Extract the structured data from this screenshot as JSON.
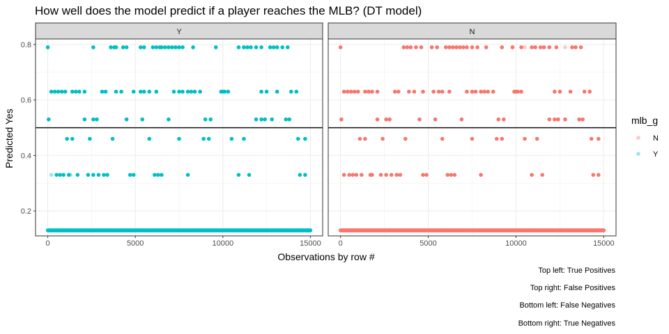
{
  "chart_data": {
    "type": "scatter",
    "title": "How well does the model predict if a player reaches the MLB? (DT model)",
    "xlabel": "Observations by row #",
    "ylabel": "Predicted Yes",
    "xlim": [
      -700,
      15700
    ],
    "ylim": [
      0.11,
      0.82
    ],
    "x_ticks": [
      0,
      5000,
      10000,
      15000
    ],
    "x_tick_labels": [
      "0",
      "5000",
      "10000",
      "15000"
    ],
    "y_ticks": [
      0.2,
      0.4,
      0.6,
      0.8
    ],
    "y_tick_labels": [
      "0.2",
      "0.4",
      "0.6",
      "0.8"
    ],
    "threshold_line": 0.5,
    "grid": true,
    "facet_var": "actual outcome",
    "panels": [
      {
        "strip_label": "Y",
        "series": "Y",
        "levels": [
          {
            "y": 0.79,
            "x": [
              0,
              2600,
              3600,
              3800,
              3900,
              4300,
              4500,
              5300,
              5500,
              6000,
              6200,
              6400,
              6500,
              6700,
              6900,
              7100,
              7300,
              7500,
              7700,
              8300,
              9600,
              10900,
              11200,
              11400,
              11600,
              11900,
              12200,
              12700,
              12900,
              13100,
              13400,
              13700
            ]
          },
          {
            "y": 0.63,
            "x": [
              200,
              400,
              600,
              800,
              1000,
              1400,
              1600,
              1800,
              2100,
              3100,
              3300,
              3900,
              4200,
              4900,
              5300,
              5500,
              5800,
              6200,
              7200,
              7500,
              7700,
              8000,
              8200,
              8400,
              8700,
              9900,
              10000,
              10100,
              10300,
              12200,
              12500,
              13100,
              13900,
              14200
            ]
          },
          {
            "y": 0.53,
            "x": [
              50,
              2100,
              2600,
              2800,
              4500,
              5400,
              6900,
              9000,
              9300,
              11900,
              12200,
              12400,
              12800,
              13600,
              13800
            ]
          },
          {
            "y": 0.46,
            "x": [
              1100,
              1400,
              2400,
              3700,
              5800,
              7500,
              8900,
              9200,
              10500,
              11200,
              14300,
              14700
            ]
          },
          {
            "y": 0.33,
            "x": [
              500,
              700,
              900,
              1200,
              1700,
              2300,
              2600,
              2900,
              3200,
              3400,
              4700,
              4900,
              6100,
              6300,
              6500,
              8000,
              10900,
              11500,
              14400,
              14700
            ]
          },
          {
            "y": 0.13,
            "x_range": [
              0,
              15000
            ]
          }
        ],
        "faint_points": [
          {
            "x": 200,
            "y": 0.33
          },
          {
            "x": 1300,
            "y": 0.33
          },
          {
            "x": 14900,
            "y": 0.13
          }
        ]
      },
      {
        "strip_label": "N",
        "series": "N",
        "levels": [
          {
            "y": 0.79,
            "x": [
              0,
              3600,
              3800,
              4000,
              4300,
              4600,
              5200,
              5500,
              6000,
              6200,
              6400,
              6600,
              6800,
              7000,
              7200,
              7500,
              7800,
              8300,
              9200,
              9800,
              10300,
              10900,
              11100,
              11400,
              11600,
              11900,
              12300,
              13200,
              13400,
              13700
            ]
          },
          {
            "y": 0.63,
            "x": [
              200,
              400,
              600,
              800,
              1000,
              1400,
              1600,
              1800,
              2100,
              3100,
              3300,
              3900,
              4200,
              4700,
              5300,
              5600,
              5800,
              6200,
              7200,
              7500,
              7700,
              8000,
              8200,
              8400,
              8700,
              9900,
              10000,
              10100,
              10300,
              12200,
              12500,
              13100,
              13900,
              14200
            ]
          },
          {
            "y": 0.53,
            "x": [
              50,
              2100,
              2600,
              2800,
              4500,
              5400,
              6900,
              9000,
              9300,
              11900,
              12200,
              12400,
              12800,
              13600,
              13800
            ]
          },
          {
            "y": 0.46,
            "x": [
              1100,
              1400,
              2400,
              3700,
              5800,
              7500,
              8900,
              9200,
              10500,
              11200,
              14300,
              14700
            ]
          },
          {
            "y": 0.33,
            "x": [
              200,
              500,
              700,
              900,
              1200,
              1700,
              1800,
              2300,
              2600,
              2900,
              3200,
              3400,
              4700,
              4900,
              6100,
              6300,
              6500,
              8000,
              10900,
              11500,
              14400,
              14700
            ]
          },
          {
            "y": 0.13,
            "x_range": [
              0,
              15000
            ]
          }
        ],
        "faint_points": [
          {
            "x": 9800,
            "y": 0.79
          },
          {
            "x": 10500,
            "y": 0.79
          },
          {
            "x": 12800,
            "y": 0.79
          }
        ]
      }
    ],
    "legend": {
      "title": "mlb_g",
      "placement": "right",
      "entries": [
        {
          "label": "N",
          "color": "#F8766D"
        },
        {
          "label": "Y",
          "color": "#00BFC4"
        }
      ]
    },
    "colors": {
      "N": "#F8766D",
      "Y": "#00BFC4"
    }
  },
  "captions": [
    "Top left: True Positives",
    "Top right: False Positives",
    "Bottom left: False Negatives",
    "Bottom right: True Negatives"
  ]
}
